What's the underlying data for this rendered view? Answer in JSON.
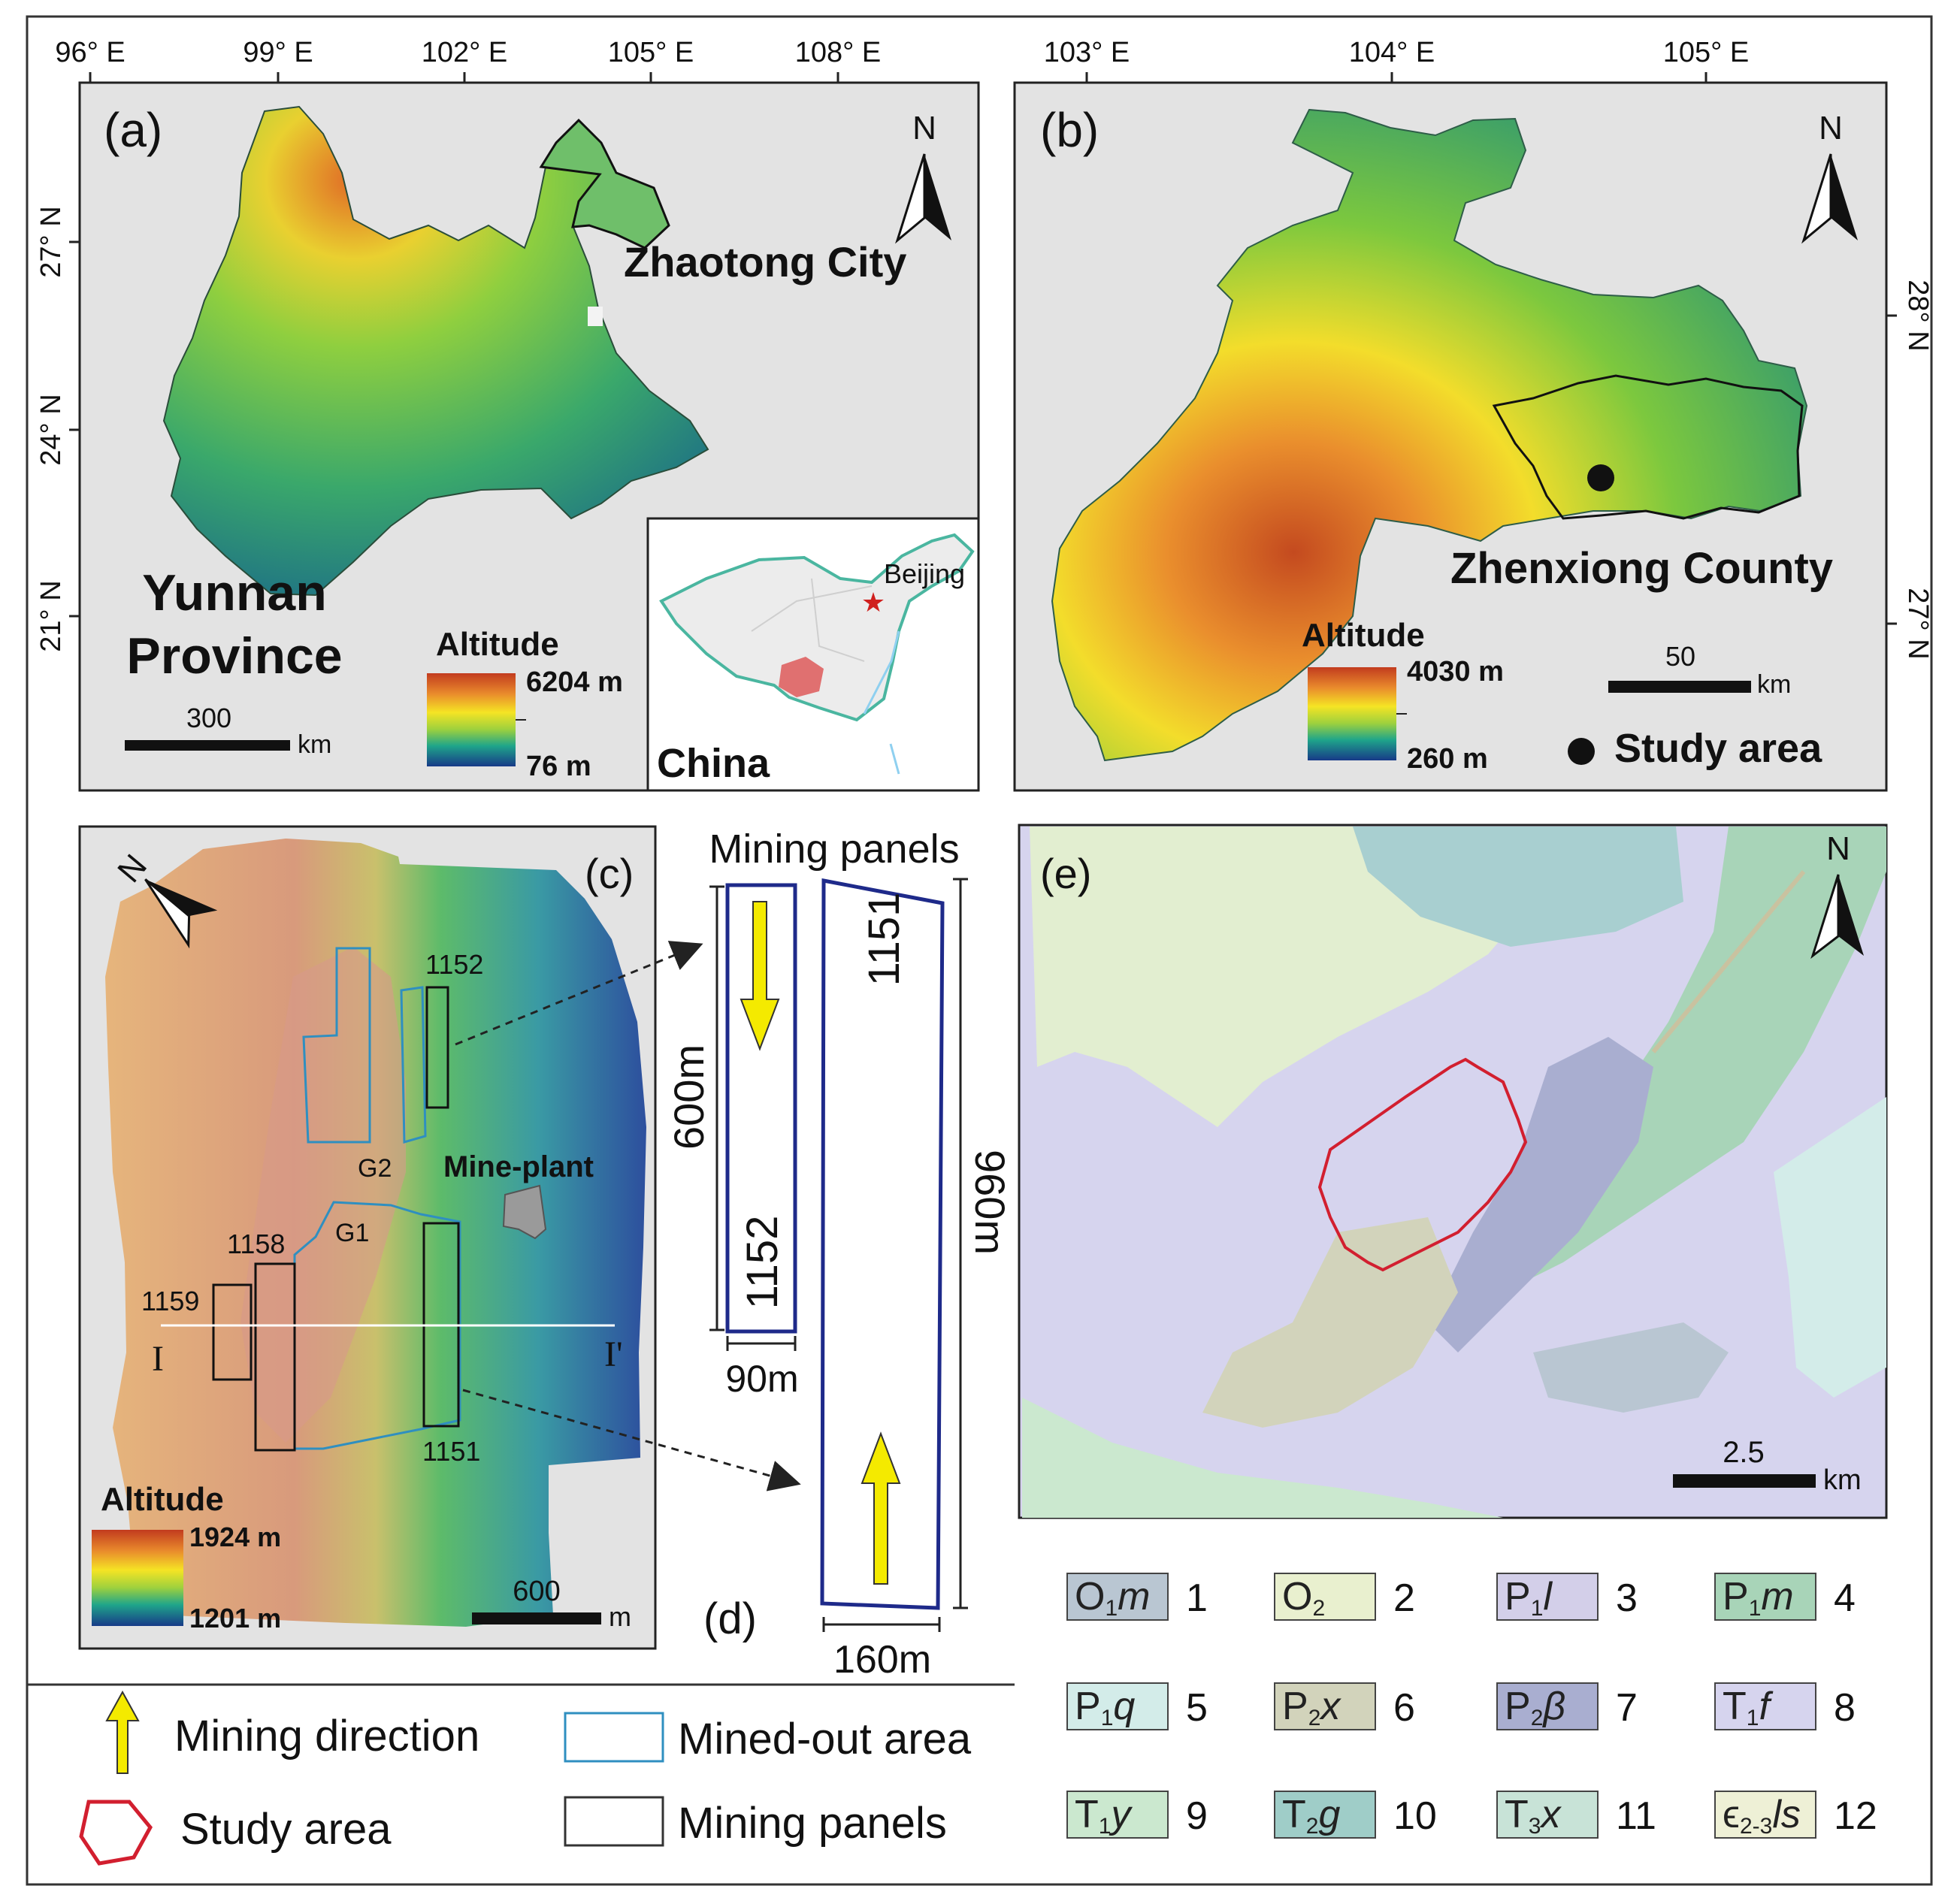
{
  "panel_a": {
    "label": "(a)",
    "lon_ticks": [
      "96° E",
      "99° E",
      "102° E",
      "105° E",
      "108° E"
    ],
    "lat_ticks": [
      "27° N",
      "24° N",
      "21° N"
    ],
    "north": "N",
    "city": "Zhaotong City",
    "province_line1": "Yunnan",
    "province_line2": "Province",
    "legend_title": "Altitude",
    "legend_max": "6204 m",
    "legend_min": "76 m",
    "scale_value": "300",
    "scale_unit": "km",
    "inset_capital": "Beijing",
    "inset_country": "China"
  },
  "panel_b": {
    "label": "(b)",
    "lon_ticks": [
      "103° E",
      "104° E",
      "105° E"
    ],
    "lat_ticks": [
      "28° N",
      "27° N"
    ],
    "north": "N",
    "county": "Zhenxiong County",
    "legend_title": "Altitude",
    "legend_max": "4030 m",
    "legend_min": "260 m",
    "scale_value": "50",
    "scale_unit": "km",
    "study_area": "Study area"
  },
  "panel_c": {
    "label": "(c)",
    "north": "N",
    "panels": [
      "1152",
      "1158",
      "1159",
      "1151"
    ],
    "goafs": [
      "G2",
      "G1"
    ],
    "mine_plant": "Mine-plant",
    "section_start": "I",
    "section_end": "I'",
    "legend_title": "Altitude",
    "legend_max": "1924 m",
    "legend_min": "1201 m",
    "scale_value": "600",
    "scale_unit": "m"
  },
  "panel_d": {
    "label": "(d)",
    "title": "Mining panels",
    "panel_1152": "1152",
    "panel_1151": "1151",
    "length_1152": "600m",
    "width_1152": "90m",
    "length_1151": "960m",
    "width_1151": "160m"
  },
  "panel_e": {
    "label": "(e)",
    "north": "N",
    "scale_value": "2.5",
    "scale_unit": "km"
  },
  "strata_legend": [
    {
      "main": "O",
      "sub": "1",
      "ital": "m",
      "num": "1",
      "color": "#b9c6d2"
    },
    {
      "main": "O",
      "sub": "2",
      "ital": "",
      "num": "2",
      "color": "#e9f0cf"
    },
    {
      "main": "P",
      "sub": "1",
      "ital": "l",
      "num": "3",
      "color": "#d3cfe9"
    },
    {
      "main": "P",
      "sub": "1",
      "ital": "m",
      "num": "4",
      "color": "#a8d4b8"
    },
    {
      "main": "P",
      "sub": "1",
      "ital": "q",
      "num": "5",
      "color": "#d3ece9"
    },
    {
      "main": "P",
      "sub": "2",
      "ital": "x",
      "num": "6",
      "color": "#d2d3bb"
    },
    {
      "main": "P",
      "sub": "2",
      "ital": "β",
      "num": "7",
      "color": "#a9aed0"
    },
    {
      "main": "T",
      "sub": "1",
      "ital": "f",
      "num": "8",
      "color": "#d6d4ee"
    },
    {
      "main": "T",
      "sub": "1",
      "ital": "y",
      "num": "9",
      "color": "#cbe8cf"
    },
    {
      "main": "T",
      "sub": "2",
      "ital": "g",
      "num": "10",
      "color": "#9fcdc8"
    },
    {
      "main": "T",
      "sub": "3",
      "ital": "x",
      "num": "11",
      "color": "#c8e3d7"
    },
    {
      "main": "ϵ",
      "sub": "2-3",
      "ital": "ls",
      "num": "12",
      "color": "#eef0d6"
    }
  ],
  "bottom_legend": {
    "mining_direction": "Mining direction",
    "study_area": "Study area",
    "mined_out": "Mined-out area",
    "mining_panels": "Mining panels"
  },
  "colors": {
    "frame_bg": "#e3e3e3",
    "study_outline": "#d21f2f",
    "panel_outline": "#1e2a8a",
    "mined_out": "#2f8fc0",
    "arrow_fill": "#f4ea00",
    "province_fill": "#e07070",
    "china_outline": "#4ab6a0"
  }
}
